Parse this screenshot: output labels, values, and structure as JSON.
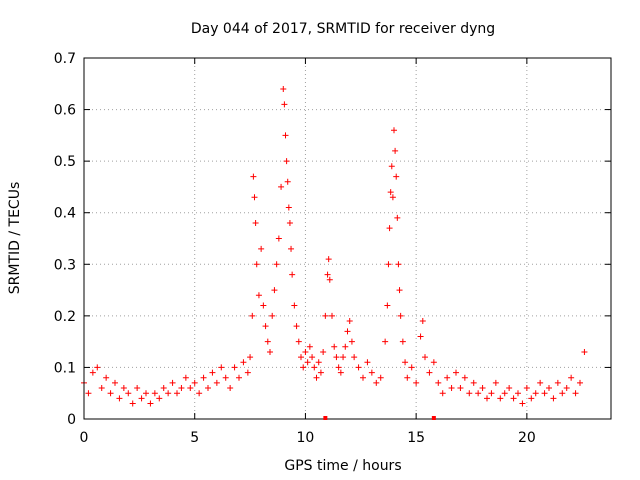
{
  "chart_data": {
    "type": "scatter",
    "title": "Day 044 of 2017, SRMTID for receiver dyng",
    "xlabel": "GPS time / hours",
    "ylabel": "SRMTID / TECUs",
    "xlim": [
      0,
      23.8
    ],
    "ylim": [
      0,
      0.7
    ],
    "xticks": [
      0,
      5,
      10,
      15,
      20
    ],
    "yticks": [
      0,
      0.1,
      0.2,
      0.3,
      0.4,
      0.5,
      0.6,
      0.7
    ],
    "xtick_labels": [
      "0",
      "5",
      "10",
      "15",
      "20"
    ],
    "ytick_labels": [
      "0",
      "0.1",
      "0.2",
      "0.3",
      "0.4",
      "0.5",
      "0.6",
      "0.7"
    ],
    "grid": true,
    "marker": "+",
    "color": "#ff0000",
    "axis_markers_x": [
      10.9,
      15.8
    ],
    "series": [
      {
        "name": "SRMTID",
        "points": [
          [
            0.0,
            0.07
          ],
          [
            0.2,
            0.05
          ],
          [
            0.4,
            0.09
          ],
          [
            0.6,
            0.1
          ],
          [
            0.8,
            0.06
          ],
          [
            1.0,
            0.08
          ],
          [
            1.2,
            0.05
          ],
          [
            1.4,
            0.07
          ],
          [
            1.6,
            0.04
          ],
          [
            1.8,
            0.06
          ],
          [
            2.0,
            0.05
          ],
          [
            2.2,
            0.03
          ],
          [
            2.4,
            0.06
          ],
          [
            2.6,
            0.04
          ],
          [
            2.8,
            0.05
          ],
          [
            3.0,
            0.03
          ],
          [
            3.2,
            0.05
          ],
          [
            3.4,
            0.04
          ],
          [
            3.6,
            0.06
          ],
          [
            3.8,
            0.05
          ],
          [
            4.0,
            0.07
          ],
          [
            4.2,
            0.05
          ],
          [
            4.4,
            0.06
          ],
          [
            4.6,
            0.08
          ],
          [
            4.8,
            0.06
          ],
          [
            5.0,
            0.07
          ],
          [
            5.2,
            0.05
          ],
          [
            5.4,
            0.08
          ],
          [
            5.6,
            0.06
          ],
          [
            5.8,
            0.09
          ],
          [
            6.0,
            0.07
          ],
          [
            6.2,
            0.1
          ],
          [
            6.4,
            0.08
          ],
          [
            6.6,
            0.06
          ],
          [
            6.8,
            0.1
          ],
          [
            7.0,
            0.08
          ],
          [
            7.2,
            0.11
          ],
          [
            7.4,
            0.09
          ],
          [
            7.5,
            0.12
          ],
          [
            7.6,
            0.2
          ],
          [
            7.65,
            0.47
          ],
          [
            7.7,
            0.43
          ],
          [
            7.75,
            0.38
          ],
          [
            7.8,
            0.3
          ],
          [
            7.9,
            0.24
          ],
          [
            8.0,
            0.33
          ],
          [
            8.1,
            0.22
          ],
          [
            8.2,
            0.18
          ],
          [
            8.3,
            0.15
          ],
          [
            8.4,
            0.13
          ],
          [
            8.5,
            0.2
          ],
          [
            8.6,
            0.25
          ],
          [
            8.7,
            0.3
          ],
          [
            8.8,
            0.35
          ],
          [
            8.9,
            0.45
          ],
          [
            9.0,
            0.64
          ],
          [
            9.05,
            0.61
          ],
          [
            9.1,
            0.55
          ],
          [
            9.15,
            0.5
          ],
          [
            9.2,
            0.46
          ],
          [
            9.25,
            0.41
          ],
          [
            9.3,
            0.38
          ],
          [
            9.35,
            0.33
          ],
          [
            9.4,
            0.28
          ],
          [
            9.5,
            0.22
          ],
          [
            9.6,
            0.18
          ],
          [
            9.7,
            0.15
          ],
          [
            9.8,
            0.12
          ],
          [
            9.9,
            0.1
          ],
          [
            10.0,
            0.13
          ],
          [
            10.1,
            0.11
          ],
          [
            10.2,
            0.14
          ],
          [
            10.3,
            0.12
          ],
          [
            10.4,
            0.1
          ],
          [
            10.5,
            0.08
          ],
          [
            10.6,
            0.11
          ],
          [
            10.7,
            0.09
          ],
          [
            10.8,
            0.13
          ],
          [
            10.9,
            0.2
          ],
          [
            11.0,
            0.28
          ],
          [
            11.05,
            0.31
          ],
          [
            11.1,
            0.27
          ],
          [
            11.2,
            0.2
          ],
          [
            11.3,
            0.14
          ],
          [
            11.4,
            0.12
          ],
          [
            11.5,
            0.1
          ],
          [
            11.6,
            0.09
          ],
          [
            11.7,
            0.12
          ],
          [
            11.8,
            0.14
          ],
          [
            11.9,
            0.17
          ],
          [
            12.0,
            0.19
          ],
          [
            12.1,
            0.15
          ],
          [
            12.2,
            0.12
          ],
          [
            12.4,
            0.1
          ],
          [
            12.6,
            0.08
          ],
          [
            12.8,
            0.11
          ],
          [
            13.0,
            0.09
          ],
          [
            13.2,
            0.07
          ],
          [
            13.4,
            0.08
          ],
          [
            13.6,
            0.15
          ],
          [
            13.7,
            0.22
          ],
          [
            13.75,
            0.3
          ],
          [
            13.8,
            0.37
          ],
          [
            13.85,
            0.44
          ],
          [
            13.9,
            0.49
          ],
          [
            13.95,
            0.43
          ],
          [
            14.0,
            0.56
          ],
          [
            14.05,
            0.52
          ],
          [
            14.1,
            0.47
          ],
          [
            14.15,
            0.39
          ],
          [
            14.2,
            0.3
          ],
          [
            14.25,
            0.25
          ],
          [
            14.3,
            0.2
          ],
          [
            14.4,
            0.15
          ],
          [
            14.5,
            0.11
          ],
          [
            14.6,
            0.08
          ],
          [
            14.8,
            0.1
          ],
          [
            15.0,
            0.07
          ],
          [
            15.2,
            0.16
          ],
          [
            15.3,
            0.19
          ],
          [
            15.4,
            0.12
          ],
          [
            15.6,
            0.09
          ],
          [
            15.8,
            0.11
          ],
          [
            16.0,
            0.07
          ],
          [
            16.2,
            0.05
          ],
          [
            16.4,
            0.08
          ],
          [
            16.6,
            0.06
          ],
          [
            16.8,
            0.09
          ],
          [
            17.0,
            0.06
          ],
          [
            17.2,
            0.08
          ],
          [
            17.4,
            0.05
          ],
          [
            17.6,
            0.07
          ],
          [
            17.8,
            0.05
          ],
          [
            18.0,
            0.06
          ],
          [
            18.2,
            0.04
          ],
          [
            18.4,
            0.05
          ],
          [
            18.6,
            0.07
          ],
          [
            18.8,
            0.04
          ],
          [
            19.0,
            0.05
          ],
          [
            19.2,
            0.06
          ],
          [
            19.4,
            0.04
          ],
          [
            19.6,
            0.05
          ],
          [
            19.8,
            0.03
          ],
          [
            20.0,
            0.06
          ],
          [
            20.2,
            0.04
          ],
          [
            20.4,
            0.05
          ],
          [
            20.6,
            0.07
          ],
          [
            20.8,
            0.05
          ],
          [
            21.0,
            0.06
          ],
          [
            21.2,
            0.04
          ],
          [
            21.4,
            0.07
          ],
          [
            21.6,
            0.05
          ],
          [
            21.8,
            0.06
          ],
          [
            22.0,
            0.08
          ],
          [
            22.2,
            0.05
          ],
          [
            22.4,
            0.07
          ],
          [
            22.6,
            0.13
          ]
        ]
      }
    ]
  }
}
